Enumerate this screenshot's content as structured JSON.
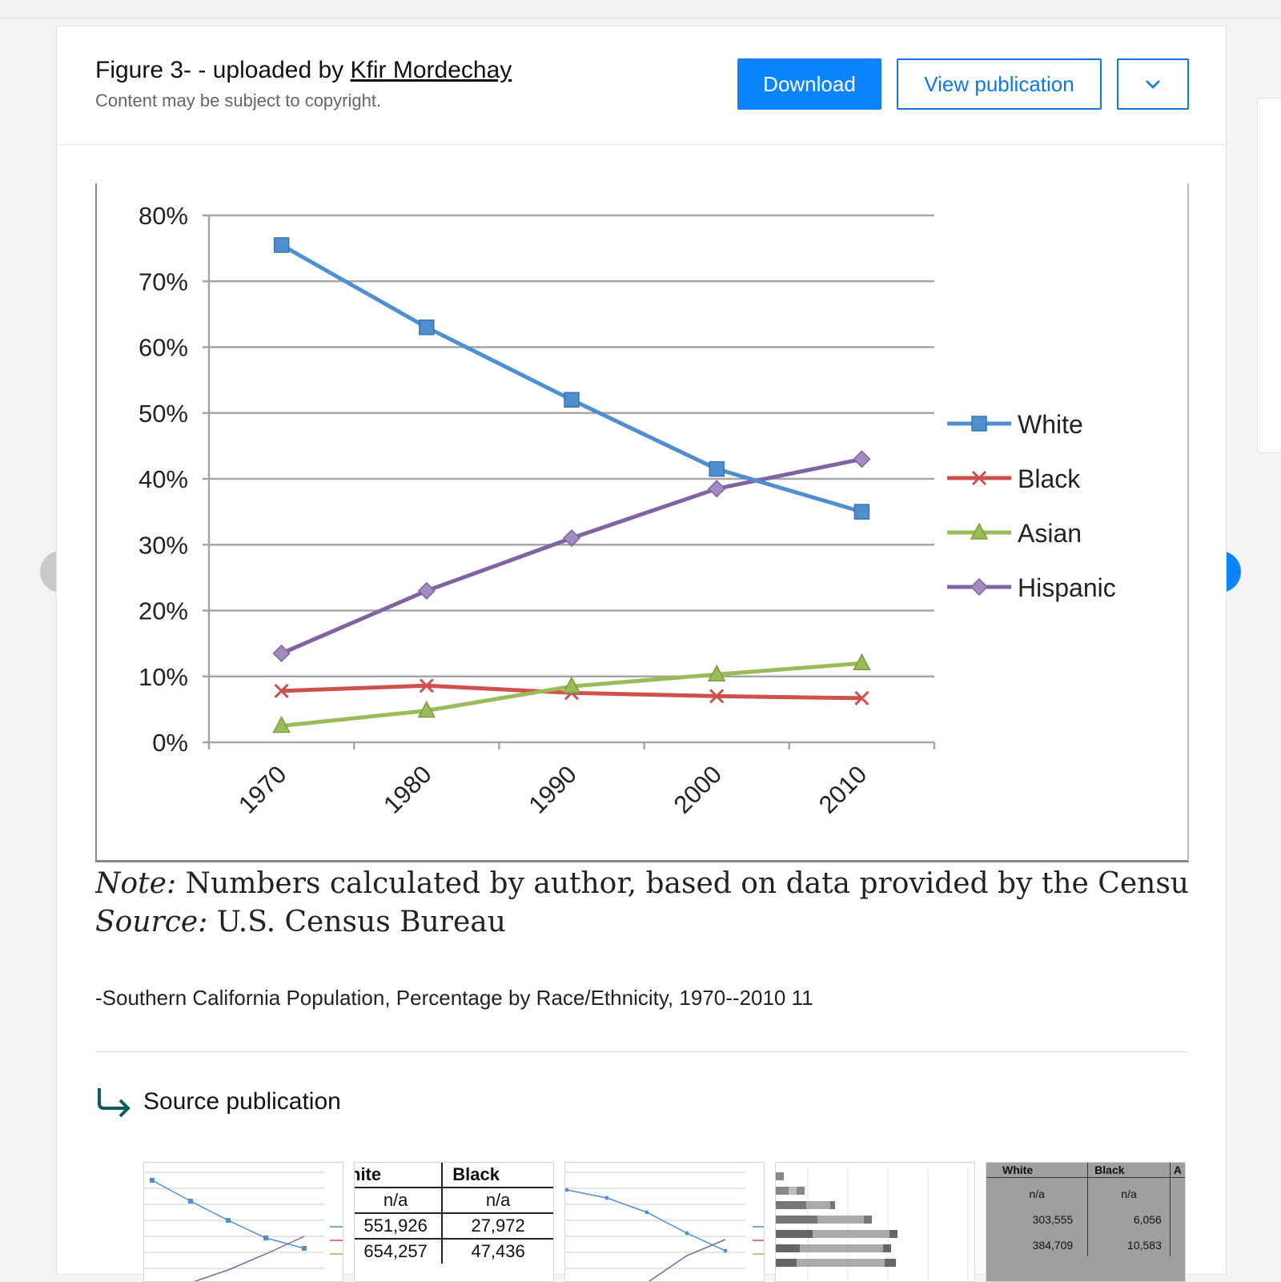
{
  "header": {
    "title_prefix": "Figure 3- - uploaded by ",
    "author": "Kfir Mordechay",
    "copyright": "Content may be subject to copyright.",
    "download_label": "Download",
    "view_label": "View publication"
  },
  "chart_data": {
    "type": "line",
    "title": "",
    "xlabel": "",
    "ylabel": "",
    "categories": [
      "1970",
      "1980",
      "1990",
      "2000",
      "2010"
    ],
    "y_ticks": [
      "0%",
      "10%",
      "20%",
      "30%",
      "40%",
      "50%",
      "60%",
      "70%",
      "80%"
    ],
    "ylim": [
      0,
      80
    ],
    "grid": true,
    "legend_position": "right",
    "series": [
      {
        "name": "White",
        "color": "#4f8fcf",
        "marker": "square",
        "values": [
          75.5,
          63,
          52,
          41.5,
          35
        ]
      },
      {
        "name": "Black",
        "color": "#d0504d",
        "marker": "x",
        "values": [
          7.8,
          8.6,
          7.5,
          7.0,
          6.7
        ]
      },
      {
        "name": "Asian",
        "color": "#9bbb59",
        "marker": "triangle",
        "values": [
          2.5,
          4.8,
          8.5,
          10.3,
          12
        ]
      },
      {
        "name": "Hispanic",
        "color": "#8064a2",
        "marker": "diamond",
        "values": [
          13.5,
          23,
          31,
          38.5,
          43
        ]
      }
    ]
  },
  "figure": {
    "note_label": "Note:",
    "note_text": " Numbers calculated by author, based on data provided by the Census Bu",
    "source_label": "Source:",
    "source_text": " U.S. Census Bureau"
  },
  "caption": "-Southern California Population, Percentage by Race/Ethnicity, 1970--2010 11",
  "source_publication": {
    "label": "Source publication"
  },
  "thumbnails": {
    "table1": {
      "headers": [
        "hite",
        "Black"
      ],
      "rows": [
        [
          "n/a",
          "n/a"
        ],
        [
          "551,926",
          "27,972"
        ],
        [
          "654,257",
          "47,436"
        ]
      ]
    },
    "table2": {
      "headers": [
        "White",
        "Black",
        "A"
      ],
      "rows": [
        [
          "n/a",
          "n/a"
        ],
        [
          "303,555",
          "6,056"
        ],
        [
          "384,709",
          "10,583"
        ]
      ]
    }
  },
  "colors": {
    "accent": "#0a84ff"
  }
}
